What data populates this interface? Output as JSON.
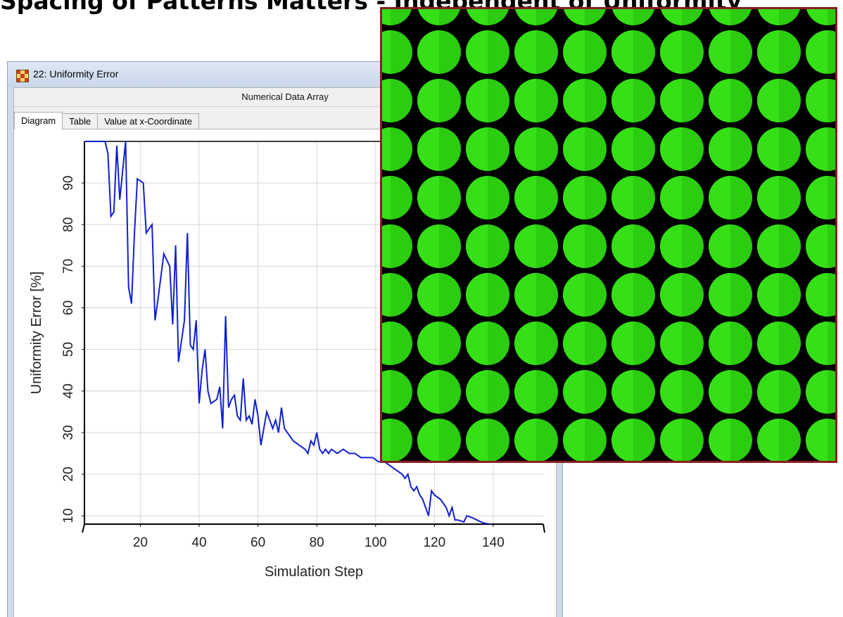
{
  "top_text": "Spacing of Patterns Matters - Independent of Uniformity",
  "window": {
    "title": "22: Uniformity Error",
    "header": "Numerical Data Array",
    "tabs": [
      {
        "label": "Diagram",
        "active": true
      },
      {
        "label": "Table",
        "active": false
      },
      {
        "label": "Value at x-Coordinate",
        "active": false
      }
    ],
    "icon_name": "checker-app-icon",
    "colors": {
      "title_bar": "#cfdbea",
      "frame_border": "#8aa4c4"
    }
  },
  "chart_data": {
    "type": "line",
    "title": "",
    "xlabel": "Simulation Step",
    "ylabel": "Uniformity Error [%]",
    "xlim": [
      1,
      157
    ],
    "ylim": [
      8,
      100
    ],
    "xticks": [
      20,
      40,
      60,
      80,
      100,
      120,
      140
    ],
    "yticks": [
      10,
      20,
      30,
      40,
      50,
      60,
      70,
      80,
      90
    ],
    "grid": true,
    "line_color": "#1020d0",
    "series": [
      {
        "values": [
          [
            1,
            100
          ],
          [
            8,
            100
          ],
          [
            9,
            97
          ],
          [
            10,
            82
          ],
          [
            11,
            83
          ],
          [
            12,
            99
          ],
          [
            13,
            86
          ],
          [
            15,
            100
          ],
          [
            16,
            65
          ],
          [
            17,
            61
          ],
          [
            18,
            78
          ],
          [
            19,
            91
          ],
          [
            21,
            90
          ],
          [
            22,
            78
          ],
          [
            24,
            80
          ],
          [
            25,
            57
          ],
          [
            26,
            62
          ],
          [
            28,
            73
          ],
          [
            30,
            70
          ],
          [
            31,
            56
          ],
          [
            32,
            75
          ],
          [
            33,
            47
          ],
          [
            35,
            57
          ],
          [
            36,
            78
          ],
          [
            37,
            51
          ],
          [
            38,
            50
          ],
          [
            39,
            57
          ],
          [
            40,
            37
          ],
          [
            41,
            45
          ],
          [
            42,
            50
          ],
          [
            43,
            40
          ],
          [
            44,
            37
          ],
          [
            46,
            38
          ],
          [
            47,
            41
          ],
          [
            48,
            31
          ],
          [
            49,
            58
          ],
          [
            50,
            36
          ],
          [
            51,
            38
          ],
          [
            52,
            39
          ],
          [
            53,
            34
          ],
          [
            54,
            33
          ],
          [
            55,
            43
          ],
          [
            56,
            33
          ],
          [
            57,
            34
          ],
          [
            58,
            32
          ],
          [
            59,
            38
          ],
          [
            60,
            34
          ],
          [
            61,
            27
          ],
          [
            62,
            31
          ],
          [
            63,
            35
          ],
          [
            64,
            33
          ],
          [
            65,
            31
          ],
          [
            66,
            33
          ],
          [
            67,
            30
          ],
          [
            68,
            36
          ],
          [
            69,
            31
          ],
          [
            70,
            30
          ],
          [
            72,
            28
          ],
          [
            74,
            27
          ],
          [
            76,
            26
          ],
          [
            77,
            25
          ],
          [
            78,
            28
          ],
          [
            79,
            27
          ],
          [
            80,
            30
          ],
          [
            81,
            26
          ],
          [
            82,
            25
          ],
          [
            83,
            26
          ],
          [
            84,
            25
          ],
          [
            85,
            26
          ],
          [
            87,
            25
          ],
          [
            89,
            26
          ],
          [
            91,
            25
          ],
          [
            93,
            25
          ],
          [
            95,
            24
          ],
          [
            97,
            24
          ],
          [
            99,
            24
          ],
          [
            101,
            23
          ],
          [
            103,
            23
          ],
          [
            105,
            22
          ],
          [
            107,
            21
          ],
          [
            109,
            20
          ],
          [
            110,
            19
          ],
          [
            111,
            20
          ],
          [
            112,
            17
          ],
          [
            113,
            16
          ],
          [
            114,
            17
          ],
          [
            115,
            15
          ],
          [
            116,
            14
          ],
          [
            117,
            12
          ],
          [
            118,
            10
          ],
          [
            119,
            16
          ],
          [
            120,
            15
          ],
          [
            122,
            14
          ],
          [
            124,
            12
          ],
          [
            125,
            10
          ],
          [
            126,
            12
          ],
          [
            127,
            9
          ],
          [
            128,
            9
          ],
          [
            130,
            8.5
          ],
          [
            131,
            10
          ],
          [
            133,
            9.5
          ],
          [
            135,
            8.8
          ],
          [
            137,
            8.2
          ],
          [
            139,
            8
          ],
          [
            141,
            7.5
          ],
          [
            143,
            7.3
          ],
          [
            145,
            7.5
          ],
          [
            147,
            7.6
          ],
          [
            149,
            7.4
          ],
          [
            151,
            7.3
          ],
          [
            153,
            7.4
          ],
          [
            155,
            7.2
          ],
          [
            157,
            7
          ]
        ]
      }
    ]
  },
  "zoom_image": {
    "description_icon": "green-dot-pattern",
    "rows": 11,
    "cols": 10,
    "dot_color": "#2ccc10",
    "dot_highlight": "#3ef01c",
    "background": "#000000",
    "frame_color": "#8b1f1f"
  }
}
